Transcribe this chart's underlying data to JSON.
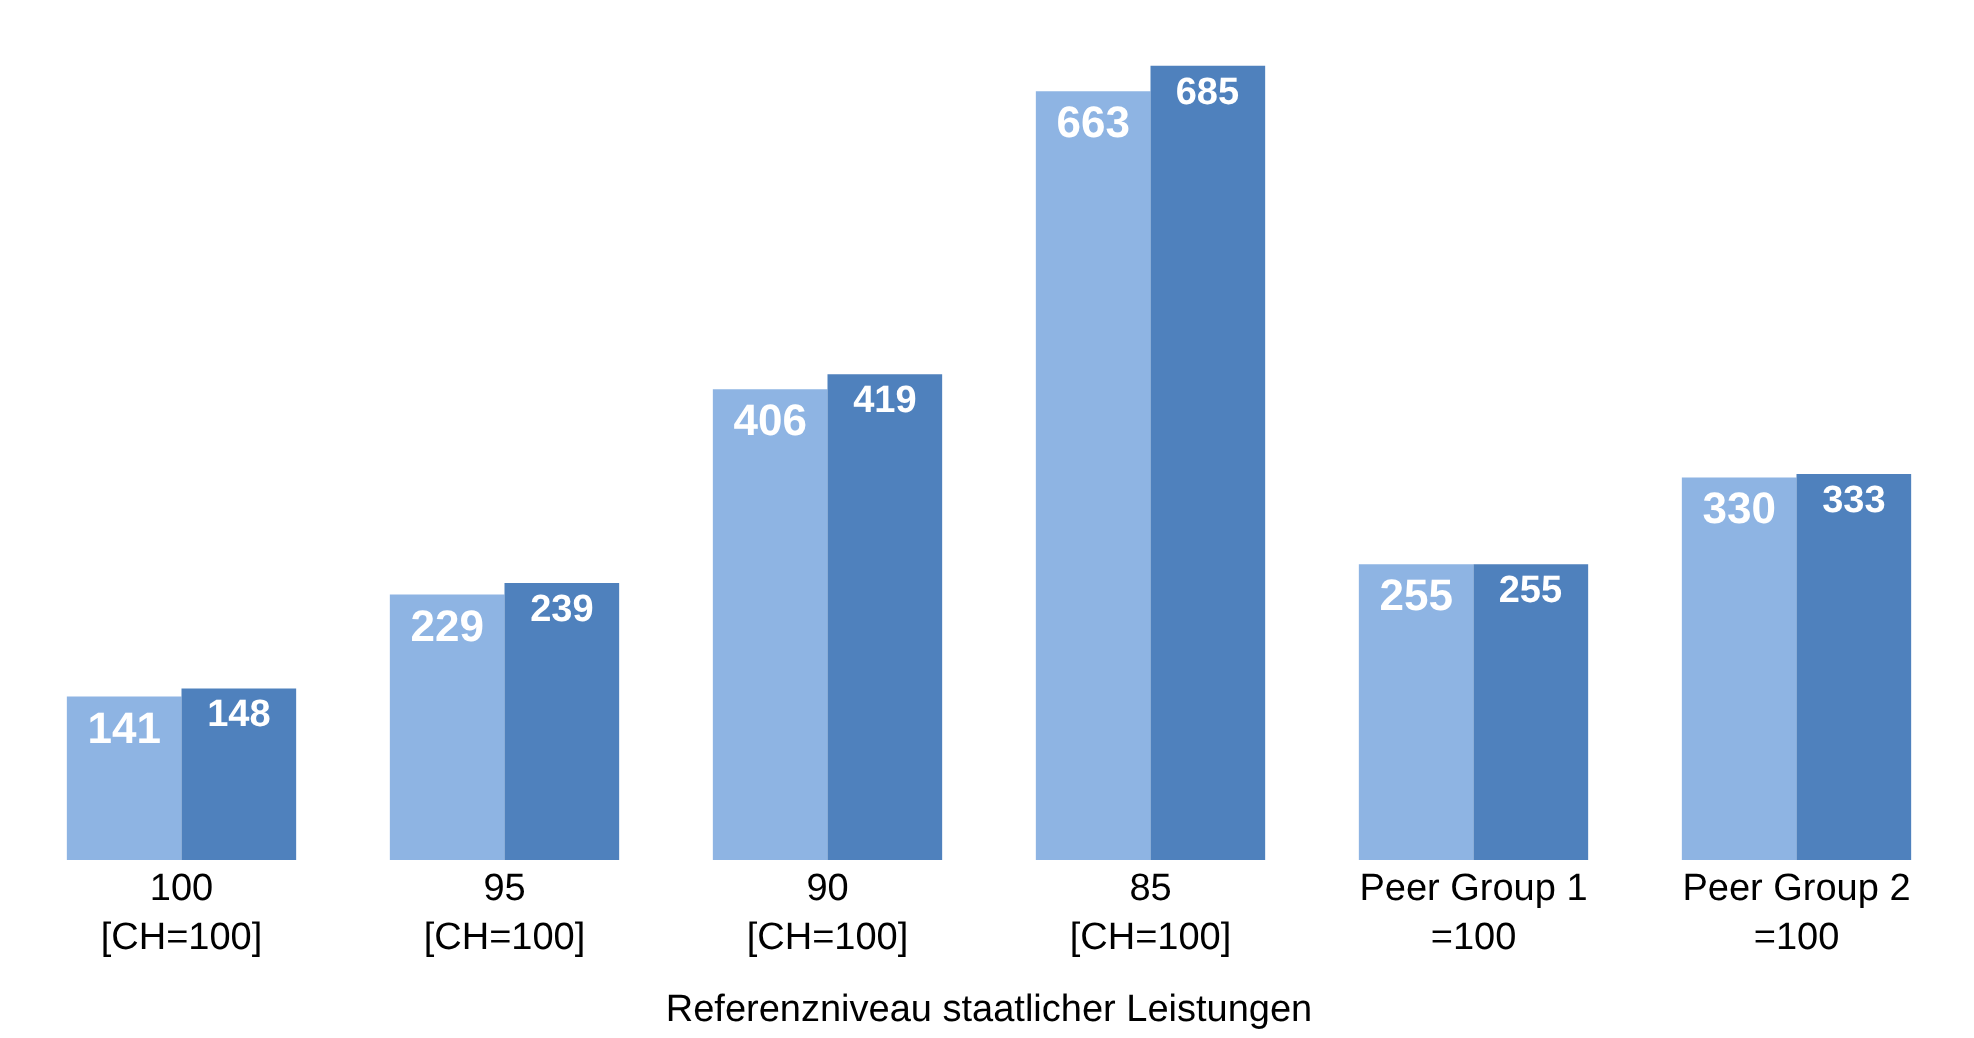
{
  "chart_data": {
    "type": "bar",
    "xlabel": "Referenzniveau staatlicher Leistungen",
    "categories": [
      "100\n[CH=100]",
      "95\n[CH=100]",
      "90\n[CH=100]",
      "85\n[CH=100]",
      "Peer Group 1\n=100",
      "Peer Group 2\n=100"
    ],
    "series": [
      {
        "color": "#8eb4e3",
        "values": [
          141,
          229,
          406,
          663,
          255,
          330
        ]
      },
      {
        "color": "#4f81bd",
        "values": [
          148,
          239,
          419,
          685,
          255,
          333
        ]
      }
    ],
    "data_labels": true
  }
}
